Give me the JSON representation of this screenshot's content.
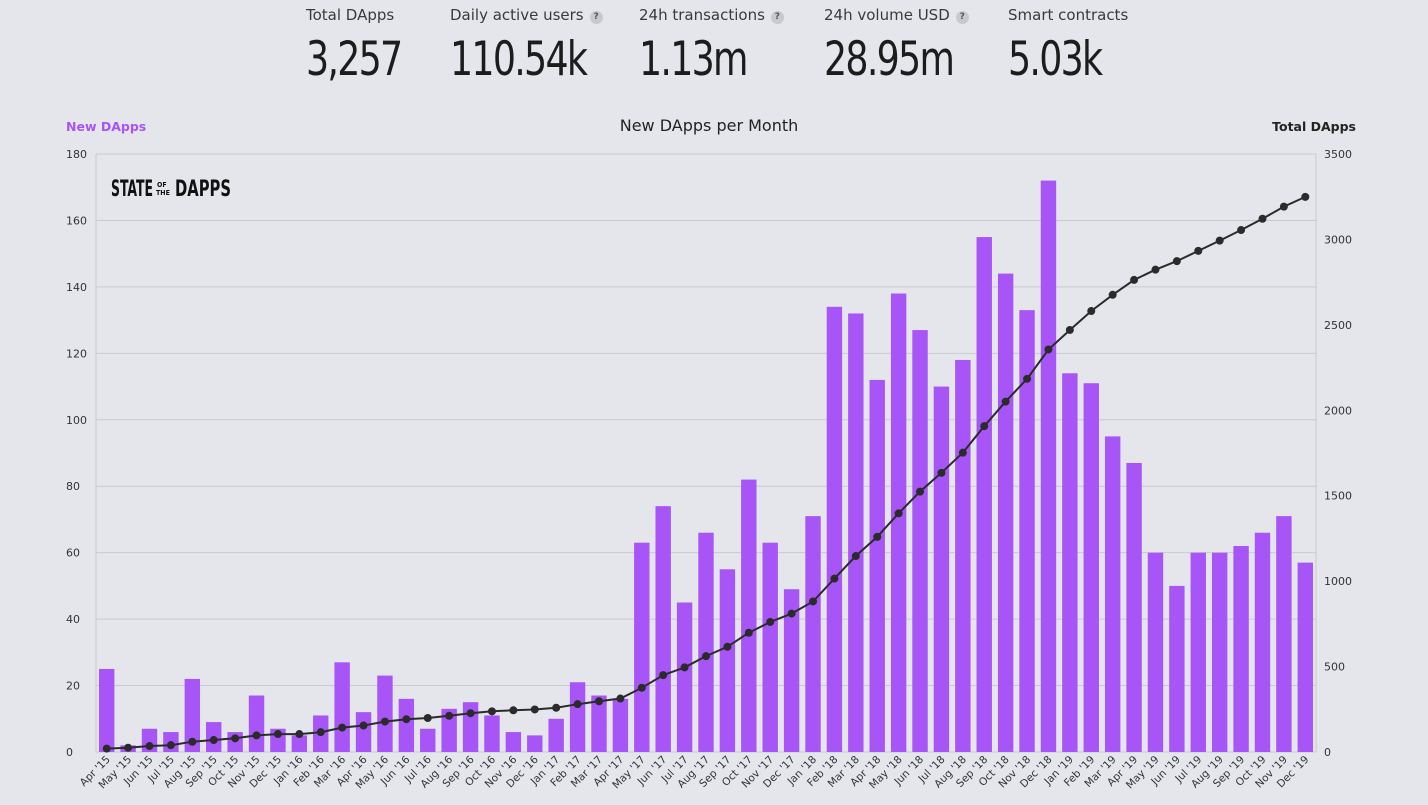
{
  "stats": [
    {
      "label": "Total DApps",
      "value": "3,257",
      "help": false
    },
    {
      "label": "Daily active users",
      "value": "110.54k",
      "help": true
    },
    {
      "label": "24h transactions",
      "value": "1.13m",
      "help": true
    },
    {
      "label": "24h volume USD",
      "value": "28.95m",
      "help": true
    },
    {
      "label": "Smart contracts",
      "value": "5.03k",
      "help": false
    }
  ],
  "help_symbol": "?",
  "logo": {
    "part1": "STATE",
    "part2a": "OF",
    "part2b": "THE",
    "part3": "DAPPS"
  },
  "colors": {
    "bar": "#a855f7",
    "line": "#2b2b2b",
    "left_label": "#a855f7",
    "grid": "#c9cad0"
  },
  "chart_data": {
    "type": "bar",
    "title": "New DApps per Month",
    "y_left_label": "New DApps",
    "y_right_label": "Total DApps",
    "y_left_range": [
      0,
      180
    ],
    "y_left_ticks": [
      0,
      20,
      40,
      60,
      80,
      100,
      120,
      140,
      160,
      180
    ],
    "y_right_range": [
      0,
      3500
    ],
    "y_right_ticks": [
      0,
      500,
      1000,
      1500,
      2000,
      2500,
      3000,
      3500
    ],
    "grid": true,
    "categories": [
      "Apr '15",
      "May '15",
      "Jun '15",
      "Jul '15",
      "Aug '15",
      "Sep '15",
      "Oct '15",
      "Nov '15",
      "Dec '15",
      "Jan '16",
      "Feb '16",
      "Mar '16",
      "Apr '16",
      "May '16",
      "Jun '16",
      "Jul '16",
      "Aug '16",
      "Sep '16",
      "Oct '16",
      "Nov '16",
      "Dec '16",
      "Jan '17",
      "Feb '17",
      "Mar '17",
      "Apr '17",
      "May '17",
      "Jun '17",
      "Jul '17",
      "Aug '17",
      "Sep '17",
      "Oct '17",
      "Nov '17",
      "Dec '17",
      "Jan '18",
      "Feb '18",
      "Mar '18",
      "Apr '18",
      "May '18",
      "Jun '18",
      "Jul '18",
      "Aug '18",
      "Sep '18",
      "Oct '18",
      "Nov '18",
      "Dec '18",
      "Jan '19",
      "Feb '19",
      "Mar '19",
      "Apr '19",
      "May '19",
      "Jun '19",
      "Jul '19",
      "Aug '19",
      "Sep '19",
      "Oct '19",
      "Nov '19",
      "Dec '19"
    ],
    "series": [
      {
        "name": "New DApps",
        "type": "bar",
        "axis": "left",
        "values": [
          25,
          2,
          7,
          6,
          22,
          9,
          6,
          17,
          7,
          5,
          11,
          27,
          12,
          23,
          16,
          7,
          13,
          15,
          11,
          6,
          5,
          10,
          21,
          17,
          16,
          63,
          74,
          45,
          66,
          55,
          82,
          63,
          49,
          71,
          134,
          132,
          112,
          138,
          127,
          110,
          118,
          155,
          144,
          133,
          172,
          114,
          111,
          95,
          87,
          60,
          50,
          60,
          60,
          62,
          66,
          71,
          57
        ]
      },
      {
        "name": "Total DApps",
        "type": "line",
        "axis": "right",
        "values": [
          20,
          25,
          35,
          40,
          60,
          70,
          80,
          97,
          105,
          105,
          116,
          143,
          155,
          178,
          192,
          199,
          212,
          227,
          238,
          244,
          249,
          259,
          280,
          297,
          313,
          376,
          450,
          495,
          561,
          616,
          698,
          761,
          810,
          881,
          1015,
          1147,
          1259,
          1397,
          1524,
          1634,
          1752,
          1907,
          2051,
          2184,
          2356,
          2470,
          2581,
          2676,
          2763,
          2823,
          2873,
          2933,
          2993,
          3055,
          3121,
          3192,
          3249
        ]
      }
    ]
  }
}
